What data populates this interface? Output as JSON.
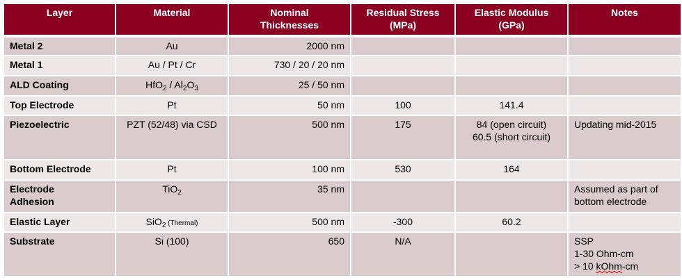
{
  "colors": {
    "header": "#8B0020",
    "row_dark": "#DACBCC",
    "row_light": "#EDE7E8"
  },
  "headers": [
    "Layer",
    "Material",
    "Nominal Thicknesses",
    "Residual Stress (MPa)",
    "Elastic Modulus (GPa)",
    "Notes"
  ],
  "rows": [
    {
      "layer": "Metal 2",
      "material": [
        {
          "t": "Au"
        }
      ],
      "thickness": "2000 nm",
      "stress": "",
      "modulus": [],
      "notes": []
    },
    {
      "layer": "Metal 1",
      "material": [
        {
          "t": "Au / Pt / Cr"
        }
      ],
      "thickness": "730 / 20 / 20 nm",
      "stress": "",
      "modulus": [],
      "notes": []
    },
    {
      "layer": "ALD Coating",
      "material": [
        {
          "t": "HfO"
        },
        {
          "sub": "2"
        },
        {
          "t": " / Al"
        },
        {
          "sub": "2"
        },
        {
          "t": "O"
        },
        {
          "sub": "3"
        }
      ],
      "thickness": "25 / 50 nm",
      "stress": "",
      "modulus": [],
      "notes": []
    },
    {
      "layer": "Top Electrode",
      "material": [
        {
          "t": "Pt"
        }
      ],
      "thickness": "50 nm",
      "stress": "100",
      "modulus": [
        "141.4"
      ],
      "notes": []
    },
    {
      "layer": "Piezoelectric",
      "material": [
        {
          "t": "PZT (52/48)  via CSD"
        }
      ],
      "thickness": "500 nm",
      "stress": "175",
      "modulus": [
        "84 (open circuit)",
        "60.5 (short circuit)"
      ],
      "notes": [
        "Updating mid-2015"
      ]
    },
    {
      "layer": "Bottom Electrode",
      "material": [
        {
          "t": "Pt"
        }
      ],
      "thickness": "100 nm",
      "stress": "530",
      "modulus": [
        "164"
      ],
      "notes": []
    },
    {
      "layer": "Electrode Adhesion",
      "material": [
        {
          "t": "TiO"
        },
        {
          "sub": "2"
        }
      ],
      "thickness": "35 nm",
      "stress": "",
      "modulus": [],
      "notes": [
        "Assumed as part of",
        "bottom electrode"
      ]
    },
    {
      "layer": "Elastic Layer",
      "material": [
        {
          "t": "SiO"
        },
        {
          "sub": "2"
        },
        {
          "small": " (Thermal)"
        }
      ],
      "thickness": "500 nm",
      "stress": "-300",
      "modulus": [
        "60.2"
      ],
      "notes": []
    },
    {
      "layer": "Substrate",
      "material": [
        {
          "t": "Si (100)"
        }
      ],
      "thickness": "650",
      "stress": "N/A",
      "modulus": [],
      "notes": [
        "SSP",
        "1-30 Ohm-cm",
        "> 10 kOhm-cm"
      ]
    }
  ]
}
